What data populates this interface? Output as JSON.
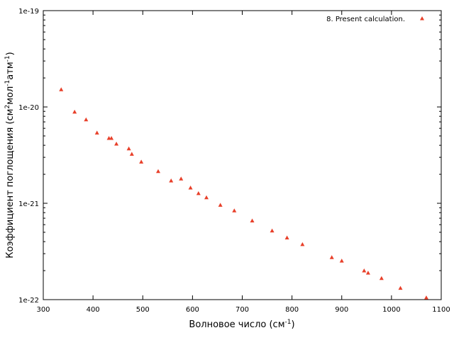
{
  "chart_data": {
    "type": "scatter",
    "xlabel": {
      "main": "Волновое число (см",
      "sup": "-1",
      "end": ")"
    },
    "ylabel": {
      "p1": "Коэффициент поглощения (см",
      "s1": "2",
      "p2": "мол",
      "s2": "-1",
      "p3": "атм",
      "s3": "-1",
      "p4": ")"
    },
    "x_ticks": [
      "300",
      "400",
      "500",
      "600",
      "700",
      "800",
      "900",
      "1000",
      "1100"
    ],
    "y_ticks": [
      "1e-22",
      "1e-21",
      "1e-20",
      "1e-19"
    ],
    "xlim": [
      300,
      1100
    ],
    "ylim": [
      1e-22,
      1e-19
    ],
    "yscale": "log",
    "grid": false,
    "legend_position": "top-right",
    "marker_color": "#e8402a",
    "series": [
      {
        "name": "8. Present calculation.",
        "points": [
          [
            336,
            1.52e-20
          ],
          [
            363,
            8.9e-21
          ],
          [
            386,
            7.4e-21
          ],
          [
            408,
            5.4e-21
          ],
          [
            432,
            4.75e-21
          ],
          [
            437,
            4.75e-21
          ],
          [
            447,
            4.15e-21
          ],
          [
            472,
            3.7e-21
          ],
          [
            478,
            3.25e-21
          ],
          [
            497,
            2.7e-21
          ],
          [
            531,
            2.15e-21
          ],
          [
            557,
            1.72e-21
          ],
          [
            577,
            1.8e-21
          ],
          [
            596,
            1.45e-21
          ],
          [
            612,
            1.27e-21
          ],
          [
            628,
            1.15e-21
          ],
          [
            656,
            9.6e-22
          ],
          [
            684,
            8.4e-22
          ],
          [
            720,
            6.6e-22
          ],
          [
            760,
            5.2e-22
          ],
          [
            790,
            4.4e-22
          ],
          [
            821,
            3.75e-22
          ],
          [
            880,
            2.75e-22
          ],
          [
            900,
            2.53e-22
          ],
          [
            945,
            2e-22
          ],
          [
            953,
            1.9e-22
          ],
          [
            980,
            1.67e-22
          ],
          [
            1018,
            1.32e-22
          ],
          [
            1070,
            1.05e-22
          ]
        ]
      }
    ]
  }
}
